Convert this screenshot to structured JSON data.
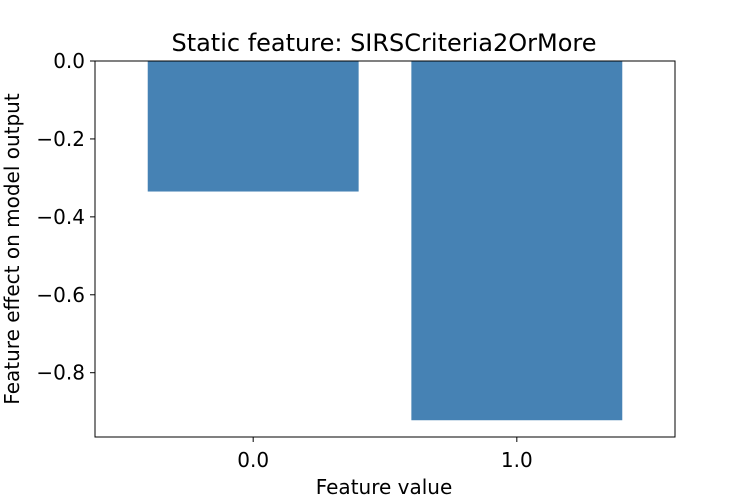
{
  "chart_data": {
    "type": "bar",
    "title": "Static feature: SIRSCriteria2OrMore",
    "xlabel": "Feature value",
    "ylabel": "Feature effect on model output",
    "categories": [
      "0.0",
      "1.0"
    ],
    "values": [
      -0.335,
      -0.922
    ],
    "ylim": [
      -0.965,
      0.0
    ],
    "yticks": [
      0.0,
      -0.2,
      -0.4,
      -0.6,
      -0.8
    ],
    "ytick_labels": [
      "0.0",
      "−0.2",
      "−0.4",
      "−0.6",
      "−0.8"
    ],
    "bar_color": "#4682b4",
    "grid": false
  }
}
